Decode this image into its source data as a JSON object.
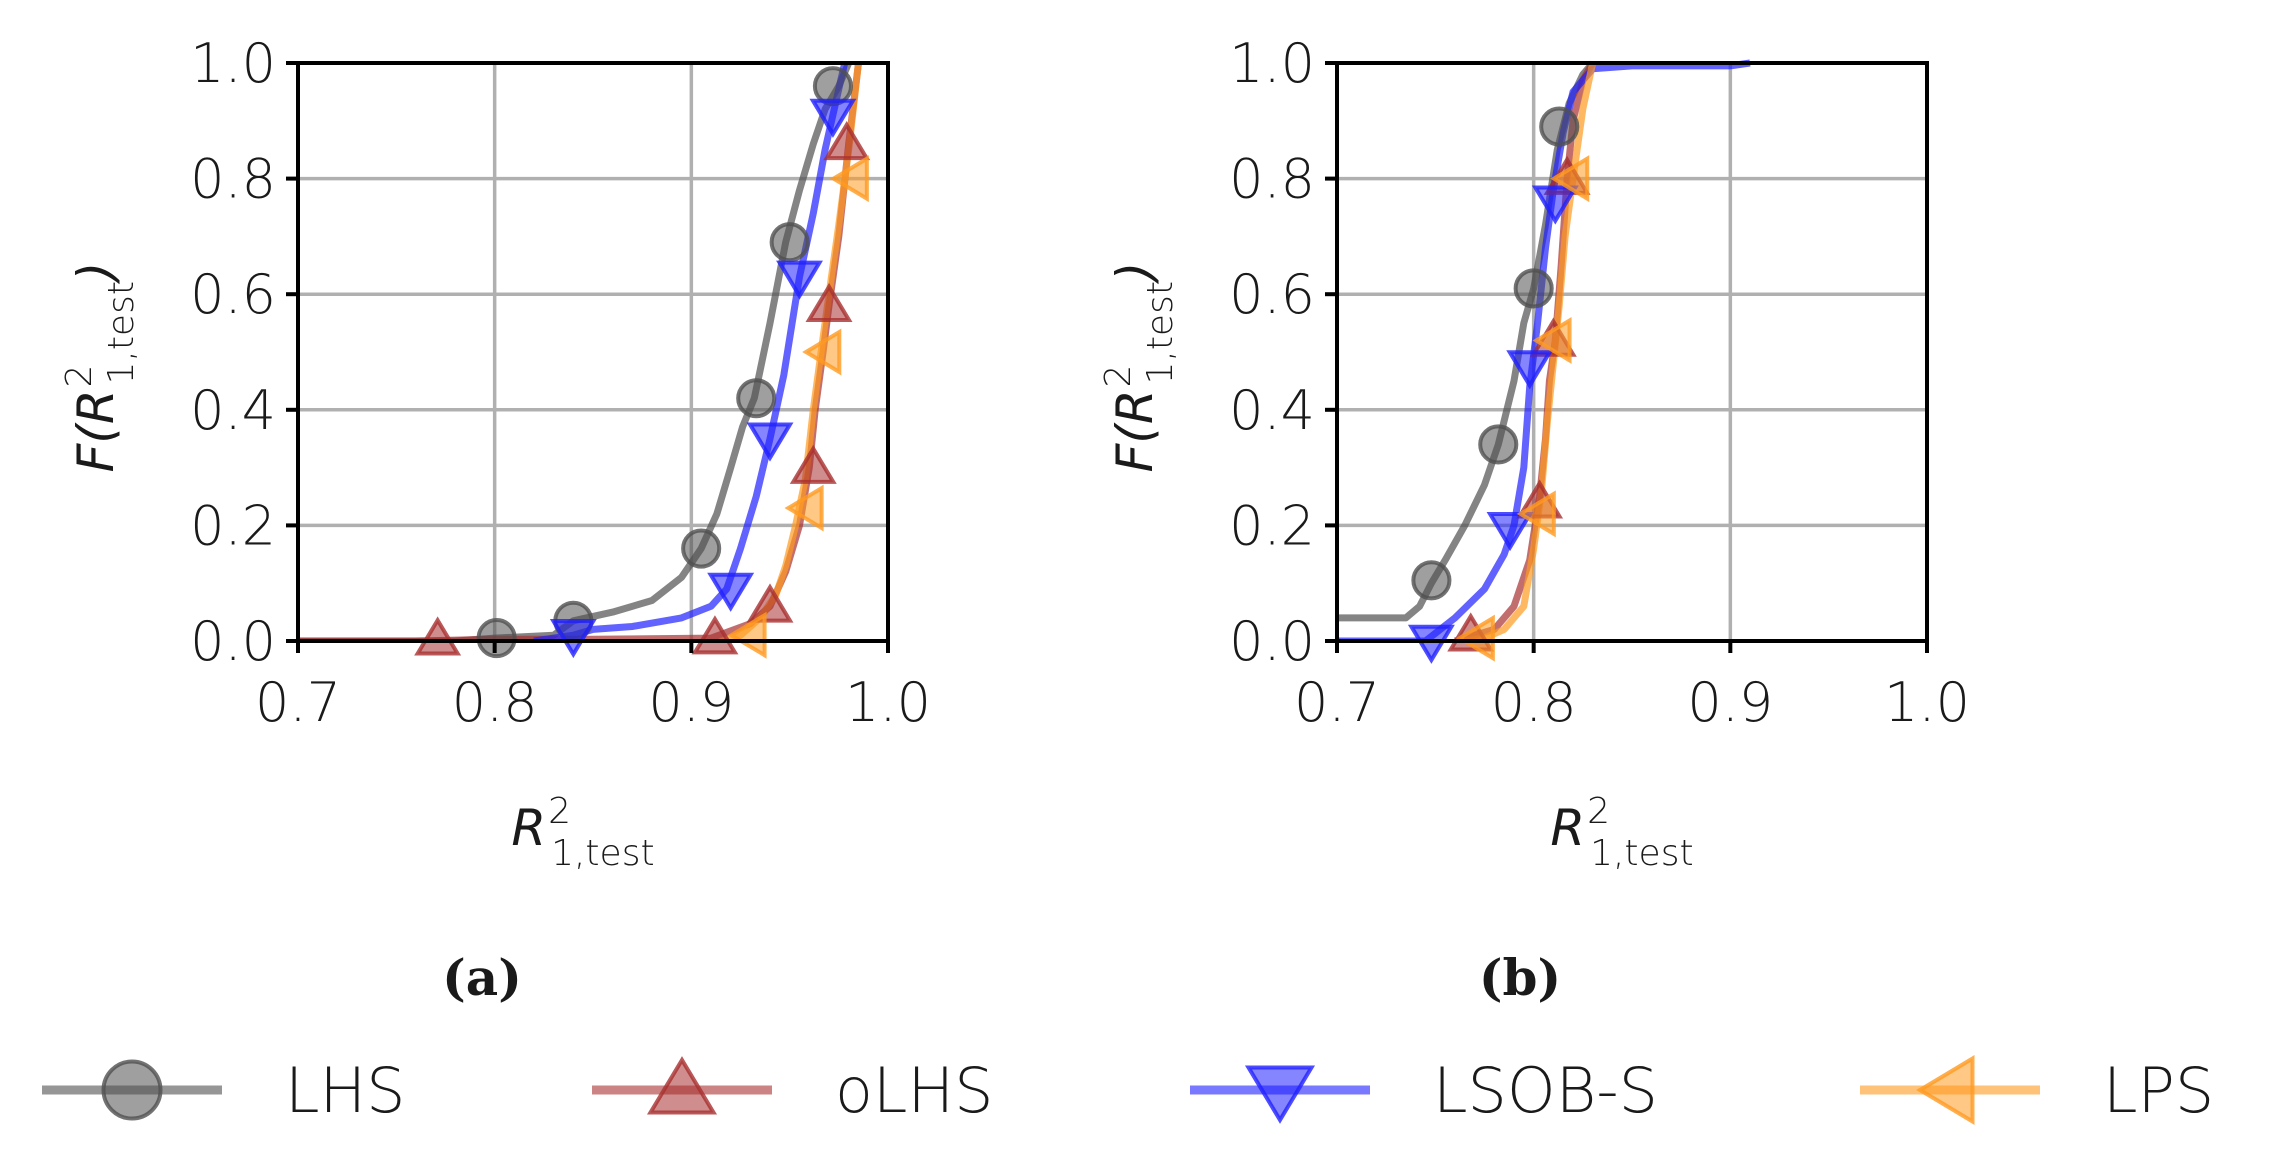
{
  "figure": {
    "panels": [
      {
        "id": "a",
        "label": "(a)"
      },
      {
        "id": "b",
        "label": "(b)"
      }
    ],
    "legend": [
      {
        "name": "LHS",
        "color": "#505050",
        "marker": "circle"
      },
      {
        "name": "oLHS",
        "color": "#a83030",
        "marker": "triangle-up"
      },
      {
        "name": "LSOB-S",
        "color": "#2020ff",
        "marker": "triangle-down"
      },
      {
        "name": "LPS",
        "color": "#ff9a20",
        "marker": "triangle-left"
      }
    ]
  },
  "chart_data": [
    {
      "type": "line",
      "title": "(a)",
      "xlabel": "R^2_1,test",
      "ylabel": "F(R^2_1,test)",
      "xlim": [
        0.7,
        1.0
      ],
      "ylim": [
        0.0,
        1.0
      ],
      "xticks": [
        "0.7",
        "0.8",
        "0.9",
        "1.0"
      ],
      "yticks": [
        "0.0",
        "0.2",
        "0.4",
        "0.6",
        "0.8",
        "1.0"
      ],
      "grid": true,
      "series": [
        {
          "name": "LHS",
          "x": [
            0.7,
            0.78,
            0.8,
            0.83,
            0.84,
            0.86,
            0.88,
            0.895,
            0.905,
            0.913,
            0.92,
            0.926,
            0.932,
            0.94,
            0.948,
            0.955,
            0.962,
            0.968,
            0.975,
            0.98
          ],
          "y": [
            0.0,
            0.0,
            0.005,
            0.01,
            0.035,
            0.05,
            0.07,
            0.11,
            0.16,
            0.22,
            0.3,
            0.37,
            0.42,
            0.55,
            0.69,
            0.78,
            0.86,
            0.92,
            0.96,
            1.0
          ],
          "marker_x": [
            0.801,
            0.84,
            0.905,
            0.933,
            0.95,
            0.972
          ],
          "marker_y": [
            0.005,
            0.035,
            0.16,
            0.42,
            0.69,
            0.96
          ]
        },
        {
          "name": "oLHS",
          "x": [
            0.7,
            0.76,
            0.8,
            0.85,
            0.91,
            0.93,
            0.94,
            0.948,
            0.955,
            0.96,
            0.963,
            0.967,
            0.97,
            0.975,
            0.98,
            0.985
          ],
          "y": [
            0.0,
            0.0,
            0.003,
            0.003,
            0.005,
            0.03,
            0.06,
            0.12,
            0.2,
            0.3,
            0.4,
            0.5,
            0.58,
            0.7,
            0.86,
            1.0
          ],
          "marker_x": [
            0.771,
            0.912,
            0.94,
            0.962,
            0.97,
            0.979
          ],
          "marker_y": [
            0.003,
            0.005,
            0.06,
            0.3,
            0.58,
            0.86
          ]
        },
        {
          "name": "LSOB-S",
          "x": [
            0.82,
            0.84,
            0.85,
            0.87,
            0.895,
            0.91,
            0.918,
            0.925,
            0.933,
            0.94,
            0.947,
            0.955,
            0.962,
            0.968,
            0.972,
            0.978
          ],
          "y": [
            0.0,
            0.01,
            0.02,
            0.025,
            0.04,
            0.06,
            0.09,
            0.16,
            0.25,
            0.35,
            0.46,
            0.63,
            0.74,
            0.85,
            0.91,
            1.0
          ],
          "marker_x": [
            0.84,
            0.92,
            0.94,
            0.955,
            0.972
          ],
          "marker_y": [
            0.01,
            0.09,
            0.35,
            0.63,
            0.91
          ]
        },
        {
          "name": "LPS",
          "x": [
            0.915,
            0.925,
            0.935,
            0.943,
            0.948,
            0.953,
            0.958,
            0.962,
            0.966,
            0.97,
            0.975,
            0.98,
            0.985
          ],
          "y": [
            0.0,
            0.01,
            0.04,
            0.08,
            0.13,
            0.2,
            0.28,
            0.4,
            0.5,
            0.6,
            0.72,
            0.85,
            1.0
          ],
          "marker_x": [
            0.93,
            0.959,
            0.968,
            0.982
          ],
          "marker_y": [
            0.01,
            0.23,
            0.5,
            0.8
          ]
        }
      ]
    },
    {
      "type": "line",
      "title": "(b)",
      "xlabel": "R^2_1,test",
      "ylabel": "F(R^2_1,test)",
      "xlim": [
        0.7,
        1.0
      ],
      "ylim": [
        0.0,
        1.0
      ],
      "xticks": [
        "0.7",
        "0.8",
        "0.9",
        "1.0"
      ],
      "yticks": [
        "0.0",
        "0.2",
        "0.4",
        "0.6",
        "0.8",
        "1.0"
      ],
      "grid": true,
      "series": [
        {
          "name": "LHS",
          "x": [
            0.7,
            0.735,
            0.742,
            0.748,
            0.755,
            0.765,
            0.775,
            0.782,
            0.79,
            0.795,
            0.8,
            0.806,
            0.812,
            0.818,
            0.825,
            0.83
          ],
          "y": [
            0.04,
            0.04,
            0.06,
            0.1,
            0.14,
            0.2,
            0.27,
            0.34,
            0.45,
            0.55,
            0.61,
            0.72,
            0.85,
            0.93,
            0.98,
            1.0
          ],
          "marker_x": [
            0.748,
            0.782,
            0.8,
            0.813
          ],
          "marker_y": [
            0.105,
            0.34,
            0.61,
            0.89
          ]
        },
        {
          "name": "oLHS",
          "x": [
            0.76,
            0.77,
            0.78,
            0.79,
            0.798,
            0.803,
            0.806,
            0.808,
            0.811,
            0.814,
            0.817,
            0.82,
            0.825,
            0.83
          ],
          "y": [
            0.0,
            0.01,
            0.02,
            0.06,
            0.14,
            0.25,
            0.35,
            0.45,
            0.52,
            0.65,
            0.8,
            0.9,
            0.97,
            1.0
          ],
          "marker_x": [
            0.768,
            0.803,
            0.81,
            0.817
          ],
          "marker_y": [
            0.01,
            0.24,
            0.52,
            0.8
          ]
        },
        {
          "name": "LSOB-S",
          "x": [
            0.7,
            0.745,
            0.76,
            0.775,
            0.785,
            0.79,
            0.795,
            0.798,
            0.802,
            0.806,
            0.81,
            0.815,
            0.82,
            0.83,
            0.85,
            0.9,
            0.91
          ],
          "y": [
            0.0,
            0.0,
            0.04,
            0.09,
            0.15,
            0.2,
            0.3,
            0.44,
            0.55,
            0.68,
            0.78,
            0.88,
            0.95,
            0.99,
            0.995,
            0.995,
            1.0
          ],
          "marker_x": [
            0.748,
            0.788,
            0.798,
            0.811
          ],
          "marker_y": [
            0.0,
            0.195,
            0.475,
            0.76
          ]
        },
        {
          "name": "LPS",
          "x": [
            0.765,
            0.775,
            0.785,
            0.795,
            0.8,
            0.804,
            0.807,
            0.81,
            0.813,
            0.816,
            0.82,
            0.825,
            0.83
          ],
          "y": [
            0.0,
            0.005,
            0.02,
            0.06,
            0.16,
            0.26,
            0.38,
            0.48,
            0.58,
            0.7,
            0.8,
            0.92,
            1.0
          ],
          "marker_x": [
            0.772,
            0.803,
            0.811,
            0.82
          ],
          "marker_y": [
            0.005,
            0.22,
            0.52,
            0.8
          ]
        }
      ]
    }
  ]
}
